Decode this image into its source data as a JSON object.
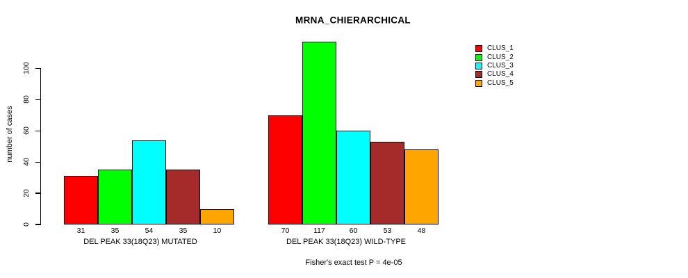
{
  "page": {
    "background": "#FFFFFF"
  },
  "chart_data": {
    "type": "bar",
    "title": "MRNA_CHIERARCHICAL",
    "ylabel": "number of cases",
    "xlabel": "",
    "annotation": "Fisher's exact test P = 4e-05",
    "legend_position": "right",
    "grid": false,
    "ylim": [
      0,
      120
    ],
    "yticks": [
      0,
      20,
      40,
      60,
      80,
      100
    ],
    "categories": [
      "DEL PEAK 33(18Q23) MUTATED",
      "DEL PEAK 33(18Q23) WILD-TYPE"
    ],
    "series": [
      {
        "name": "CLUS_1",
        "color": "#FF0000",
        "values": [
          31,
          70
        ]
      },
      {
        "name": "CLUS_2",
        "color": "#00FF00",
        "values": [
          35,
          117
        ]
      },
      {
        "name": "CLUS_3",
        "color": "#00FFFF",
        "values": [
          54,
          60
        ]
      },
      {
        "name": "CLUS_4",
        "color": "#A52A2A",
        "values": [
          35,
          53
        ]
      },
      {
        "name": "CLUS_5",
        "color": "#FFA500",
        "values": [
          10,
          48
        ]
      }
    ],
    "bar_value_labels_shown": true
  }
}
